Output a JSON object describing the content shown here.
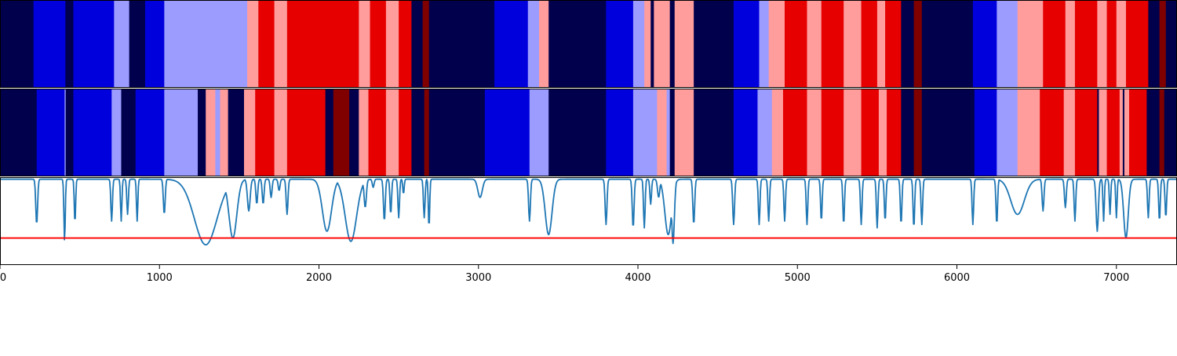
{
  "chart_data": [
    {
      "type": "heatmap",
      "title": "",
      "xlabel": "",
      "ylabel": "",
      "xlim": [
        0,
        7380
      ],
      "palette": {
        "1": "#00004c",
        "2": "#0000dd",
        "3": "#9c9cff",
        "4": "#ff9c9c",
        "5": "#e60000",
        "6": "#800000"
      },
      "segments": [
        [
          0,
          210,
          1
        ],
        [
          210,
          410,
          2
        ],
        [
          410,
          460,
          1
        ],
        [
          460,
          715,
          2
        ],
        [
          715,
          810,
          3
        ],
        [
          810,
          910,
          1
        ],
        [
          910,
          1030,
          2
        ],
        [
          1030,
          1550,
          3
        ],
        [
          1550,
          1620,
          4
        ],
        [
          1620,
          1720,
          5
        ],
        [
          1720,
          1800,
          4
        ],
        [
          1800,
          2250,
          5
        ],
        [
          2250,
          2320,
          4
        ],
        [
          2320,
          2420,
          5
        ],
        [
          2420,
          2500,
          4
        ],
        [
          2500,
          2580,
          5
        ],
        [
          2580,
          2650,
          1
        ],
        [
          2650,
          2690,
          6
        ],
        [
          2690,
          3100,
          1
        ],
        [
          3100,
          3310,
          2
        ],
        [
          3310,
          3380,
          3
        ],
        [
          3380,
          3440,
          4
        ],
        [
          3440,
          3800,
          1
        ],
        [
          3800,
          3970,
          2
        ],
        [
          3970,
          4040,
          3
        ],
        [
          4040,
          4080,
          4
        ],
        [
          4080,
          4100,
          1
        ],
        [
          4100,
          4200,
          4
        ],
        [
          4200,
          4230,
          1
        ],
        [
          4230,
          4350,
          4
        ],
        [
          4350,
          4600,
          1
        ],
        [
          4600,
          4760,
          2
        ],
        [
          4760,
          4820,
          3
        ],
        [
          4820,
          4920,
          4
        ],
        [
          4920,
          5060,
          5
        ],
        [
          5060,
          5150,
          4
        ],
        [
          5150,
          5290,
          5
        ],
        [
          5290,
          5400,
          4
        ],
        [
          5400,
          5500,
          5
        ],
        [
          5500,
          5550,
          4
        ],
        [
          5550,
          5650,
          5
        ],
        [
          5650,
          5730,
          1
        ],
        [
          5730,
          5780,
          6
        ],
        [
          5780,
          6100,
          1
        ],
        [
          6100,
          6250,
          2
        ],
        [
          6250,
          6380,
          3
        ],
        [
          6380,
          6540,
          4
        ],
        [
          6540,
          6680,
          5
        ],
        [
          6680,
          6740,
          4
        ],
        [
          6740,
          6880,
          5
        ],
        [
          6880,
          6940,
          4
        ],
        [
          6940,
          7000,
          5
        ],
        [
          7000,
          7060,
          4
        ],
        [
          7060,
          7200,
          5
        ],
        [
          7200,
          7270,
          1
        ],
        [
          7270,
          7310,
          6
        ],
        [
          7310,
          7380,
          1
        ]
      ]
    },
    {
      "type": "heatmap",
      "title": "",
      "xlabel": "",
      "ylabel": "",
      "xlim": [
        0,
        7380
      ],
      "palette": {
        "1": "#00004c",
        "2": "#0000dd",
        "3": "#9c9cff",
        "4": "#ff9c9c",
        "5": "#e60000",
        "6": "#800000"
      },
      "segments": [
        [
          0,
          230,
          1
        ],
        [
          230,
          405,
          2
        ],
        [
          405,
          412,
          3
        ],
        [
          412,
          460,
          1
        ],
        [
          460,
          700,
          2
        ],
        [
          700,
          760,
          3
        ],
        [
          760,
          850,
          1
        ],
        [
          850,
          1030,
          2
        ],
        [
          1030,
          1240,
          3
        ],
        [
          1240,
          1290,
          1
        ],
        [
          1290,
          1350,
          4
        ],
        [
          1350,
          1380,
          3
        ],
        [
          1380,
          1430,
          4
        ],
        [
          1430,
          1530,
          1
        ],
        [
          1530,
          1600,
          4
        ],
        [
          1600,
          1720,
          5
        ],
        [
          1720,
          1800,
          4
        ],
        [
          1800,
          2040,
          5
        ],
        [
          2040,
          2090,
          1
        ],
        [
          2090,
          2190,
          6
        ],
        [
          2190,
          2250,
          1
        ],
        [
          2250,
          2310,
          4
        ],
        [
          2310,
          2420,
          5
        ],
        [
          2420,
          2500,
          4
        ],
        [
          2500,
          2580,
          5
        ],
        [
          2580,
          2660,
          1
        ],
        [
          2660,
          2690,
          6
        ],
        [
          2690,
          3040,
          1
        ],
        [
          3040,
          3320,
          2
        ],
        [
          3320,
          3440,
          3
        ],
        [
          3440,
          3800,
          1
        ],
        [
          3800,
          3970,
          2
        ],
        [
          3970,
          4120,
          3
        ],
        [
          4120,
          4180,
          4
        ],
        [
          4180,
          4200,
          3
        ],
        [
          4200,
          4230,
          1
        ],
        [
          4230,
          4350,
          4
        ],
        [
          4350,
          4600,
          1
        ],
        [
          4600,
          4750,
          2
        ],
        [
          4750,
          4840,
          3
        ],
        [
          4840,
          4910,
          4
        ],
        [
          4910,
          5060,
          5
        ],
        [
          5060,
          5150,
          4
        ],
        [
          5150,
          5290,
          5
        ],
        [
          5290,
          5400,
          4
        ],
        [
          5400,
          5510,
          5
        ],
        [
          5510,
          5560,
          4
        ],
        [
          5560,
          5650,
          5
        ],
        [
          5650,
          5730,
          1
        ],
        [
          5730,
          5780,
          6
        ],
        [
          5780,
          6110,
          1
        ],
        [
          6110,
          6250,
          2
        ],
        [
          6250,
          6380,
          3
        ],
        [
          6380,
          6520,
          4
        ],
        [
          6520,
          6670,
          5
        ],
        [
          6670,
          6740,
          4
        ],
        [
          6740,
          6880,
          5
        ],
        [
          6880,
          6890,
          1
        ],
        [
          6890,
          6940,
          4
        ],
        [
          6940,
          7020,
          5
        ],
        [
          7020,
          7040,
          4
        ],
        [
          7040,
          7050,
          1
        ],
        [
          7050,
          7080,
          4
        ],
        [
          7080,
          7190,
          5
        ],
        [
          7190,
          7270,
          1
        ],
        [
          7270,
          7300,
          6
        ],
        [
          7300,
          7380,
          1
        ]
      ]
    },
    {
      "type": "line",
      "title": "",
      "xlabel": "",
      "ylabel": "",
      "xlim": [
        0,
        7380
      ],
      "ylim": [
        -0.3,
        1.0
      ],
      "x_ticks": [
        "0",
        "1000",
        "2000",
        "3000",
        "4000",
        "5000",
        "6000",
        "7000"
      ],
      "line_color": "#1f77b4",
      "threshold": {
        "value": 0.1,
        "color": "#ff0000"
      },
      "baseline": 0.97,
      "dips": [
        [
          230,
          0.3,
          8
        ],
        [
          405,
          0.05,
          6
        ],
        [
          470,
          0.32,
          6
        ],
        [
          700,
          0.35,
          7
        ],
        [
          760,
          0.35,
          6
        ],
        [
          800,
          0.45,
          7
        ],
        [
          860,
          0.35,
          6
        ],
        [
          1030,
          0.45,
          8
        ],
        [
          1290,
          0.0,
          100
        ],
        [
          1460,
          0.1,
          35
        ],
        [
          1560,
          0.5,
          12
        ],
        [
          1610,
          0.6,
          8
        ],
        [
          1650,
          0.6,
          8
        ],
        [
          1700,
          0.7,
          8
        ],
        [
          1750,
          0.8,
          8
        ],
        [
          1800,
          0.45,
          8
        ],
        [
          2050,
          0.2,
          40
        ],
        [
          2200,
          0.05,
          50
        ],
        [
          2290,
          0.55,
          10
        ],
        [
          2340,
          0.85,
          8
        ],
        [
          2410,
          0.35,
          8
        ],
        [
          2450,
          0.45,
          7
        ],
        [
          2500,
          0.4,
          7
        ],
        [
          2530,
          0.75,
          6
        ],
        [
          2660,
          0.4,
          7
        ],
        [
          2690,
          0.25,
          6
        ],
        [
          3010,
          0.7,
          20
        ],
        [
          3320,
          0.35,
          8
        ],
        [
          3440,
          0.15,
          30
        ],
        [
          3800,
          0.3,
          8
        ],
        [
          3970,
          0.25,
          8
        ],
        [
          4040,
          0.25,
          7
        ],
        [
          4080,
          0.6,
          7
        ],
        [
          4130,
          0.7,
          10
        ],
        [
          4190,
          0.15,
          30
        ],
        [
          4220,
          0.02,
          12
        ],
        [
          4350,
          0.3,
          8
        ],
        [
          4600,
          0.3,
          8
        ],
        [
          4760,
          0.3,
          7
        ],
        [
          4820,
          0.35,
          7
        ],
        [
          4920,
          0.35,
          7
        ],
        [
          5060,
          0.3,
          7
        ],
        [
          5150,
          0.35,
          7
        ],
        [
          5290,
          0.3,
          7
        ],
        [
          5400,
          0.3,
          7
        ],
        [
          5500,
          0.25,
          7
        ],
        [
          5550,
          0.35,
          7
        ],
        [
          5650,
          0.3,
          7
        ],
        [
          5730,
          0.25,
          7
        ],
        [
          5780,
          0.3,
          7
        ],
        [
          6100,
          0.3,
          7
        ],
        [
          6250,
          0.3,
          7
        ],
        [
          6380,
          0.45,
          60
        ],
        [
          6540,
          0.5,
          8
        ],
        [
          6680,
          0.55,
          8
        ],
        [
          6740,
          0.35,
          7
        ],
        [
          6880,
          0.2,
          10
        ],
        [
          6920,
          0.35,
          6
        ],
        [
          6960,
          0.45,
          6
        ],
        [
          7000,
          0.4,
          6
        ],
        [
          7060,
          0.1,
          20
        ],
        [
          7200,
          0.4,
          7
        ],
        [
          7270,
          0.35,
          7
        ],
        [
          7310,
          0.4,
          7
        ]
      ]
    }
  ]
}
